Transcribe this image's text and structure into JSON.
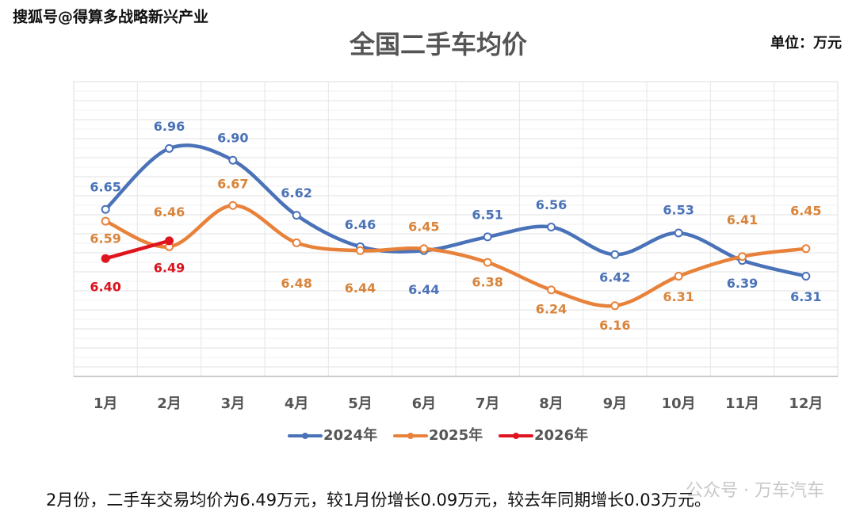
{
  "watermark": "搜狐号@得算多战略新兴产业",
  "note": "2月份，二手车交易均价为6.49万元，较1月份增长0.09万元，较去年同期增长0.03万元。",
  "footer_watermark": "公众号 · 万车汽车",
  "chart_data": {
    "type": "line",
    "title": "全国二手车均价",
    "unit": "单位：万元",
    "categories": [
      "1月",
      "2月",
      "3月",
      "4月",
      "5月",
      "6月",
      "7月",
      "8月",
      "9月",
      "10月",
      "11月",
      "12月"
    ],
    "ylim": [
      5.8,
      7.3
    ],
    "grid": true,
    "smooth": true,
    "legend": "bottom",
    "series": [
      {
        "name": "2024年",
        "color": "#4a72b8",
        "values": [
          6.65,
          6.96,
          6.9,
          6.62,
          6.46,
          6.44,
          6.51,
          6.56,
          6.42,
          6.53,
          6.39,
          6.31
        ],
        "value_labels": [
          "6.65",
          "6.96",
          "6.90",
          "6.62",
          "6.46",
          "6.44",
          "6.51",
          "6.56",
          "6.42",
          "6.53",
          "6.39",
          "6.31"
        ]
      },
      {
        "name": "2025年",
        "color": "#e8823a",
        "values": [
          6.59,
          6.46,
          6.67,
          6.48,
          6.44,
          6.45,
          6.38,
          6.24,
          6.16,
          6.31,
          6.41,
          6.45
        ],
        "value_labels": [
          "6.59",
          "6.46",
          "6.67",
          "6.48",
          "6.44",
          "6.45",
          "6.38",
          "6.24",
          "6.16",
          "6.31",
          "6.41",
          "6.45"
        ]
      },
      {
        "name": "2026年",
        "color": "#e0141e",
        "values": [
          6.4,
          6.49,
          null,
          null,
          null,
          null,
          null,
          null,
          null,
          null,
          null,
          null
        ],
        "value_labels": [
          "6.40",
          "6.49",
          null,
          null,
          null,
          null,
          null,
          null,
          null,
          null,
          null,
          null
        ]
      }
    ]
  }
}
